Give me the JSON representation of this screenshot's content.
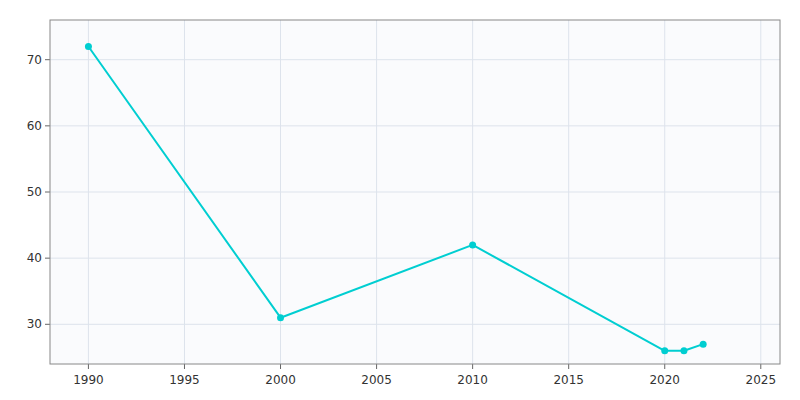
{
  "chart_data": {
    "type": "line",
    "x": [
      1990,
      2000,
      2010,
      2020,
      2021,
      2022
    ],
    "values": [
      72,
      31,
      42,
      26,
      26,
      27
    ],
    "color": "#00CED1",
    "marker": "circle",
    "xlim": [
      1988,
      2026
    ],
    "ylim": [
      24,
      76
    ],
    "xticks": [
      1990,
      1995,
      2000,
      2005,
      2010,
      2015,
      2020,
      2025
    ],
    "yticks": [
      30,
      40,
      50,
      60,
      70
    ],
    "grid": true
  }
}
